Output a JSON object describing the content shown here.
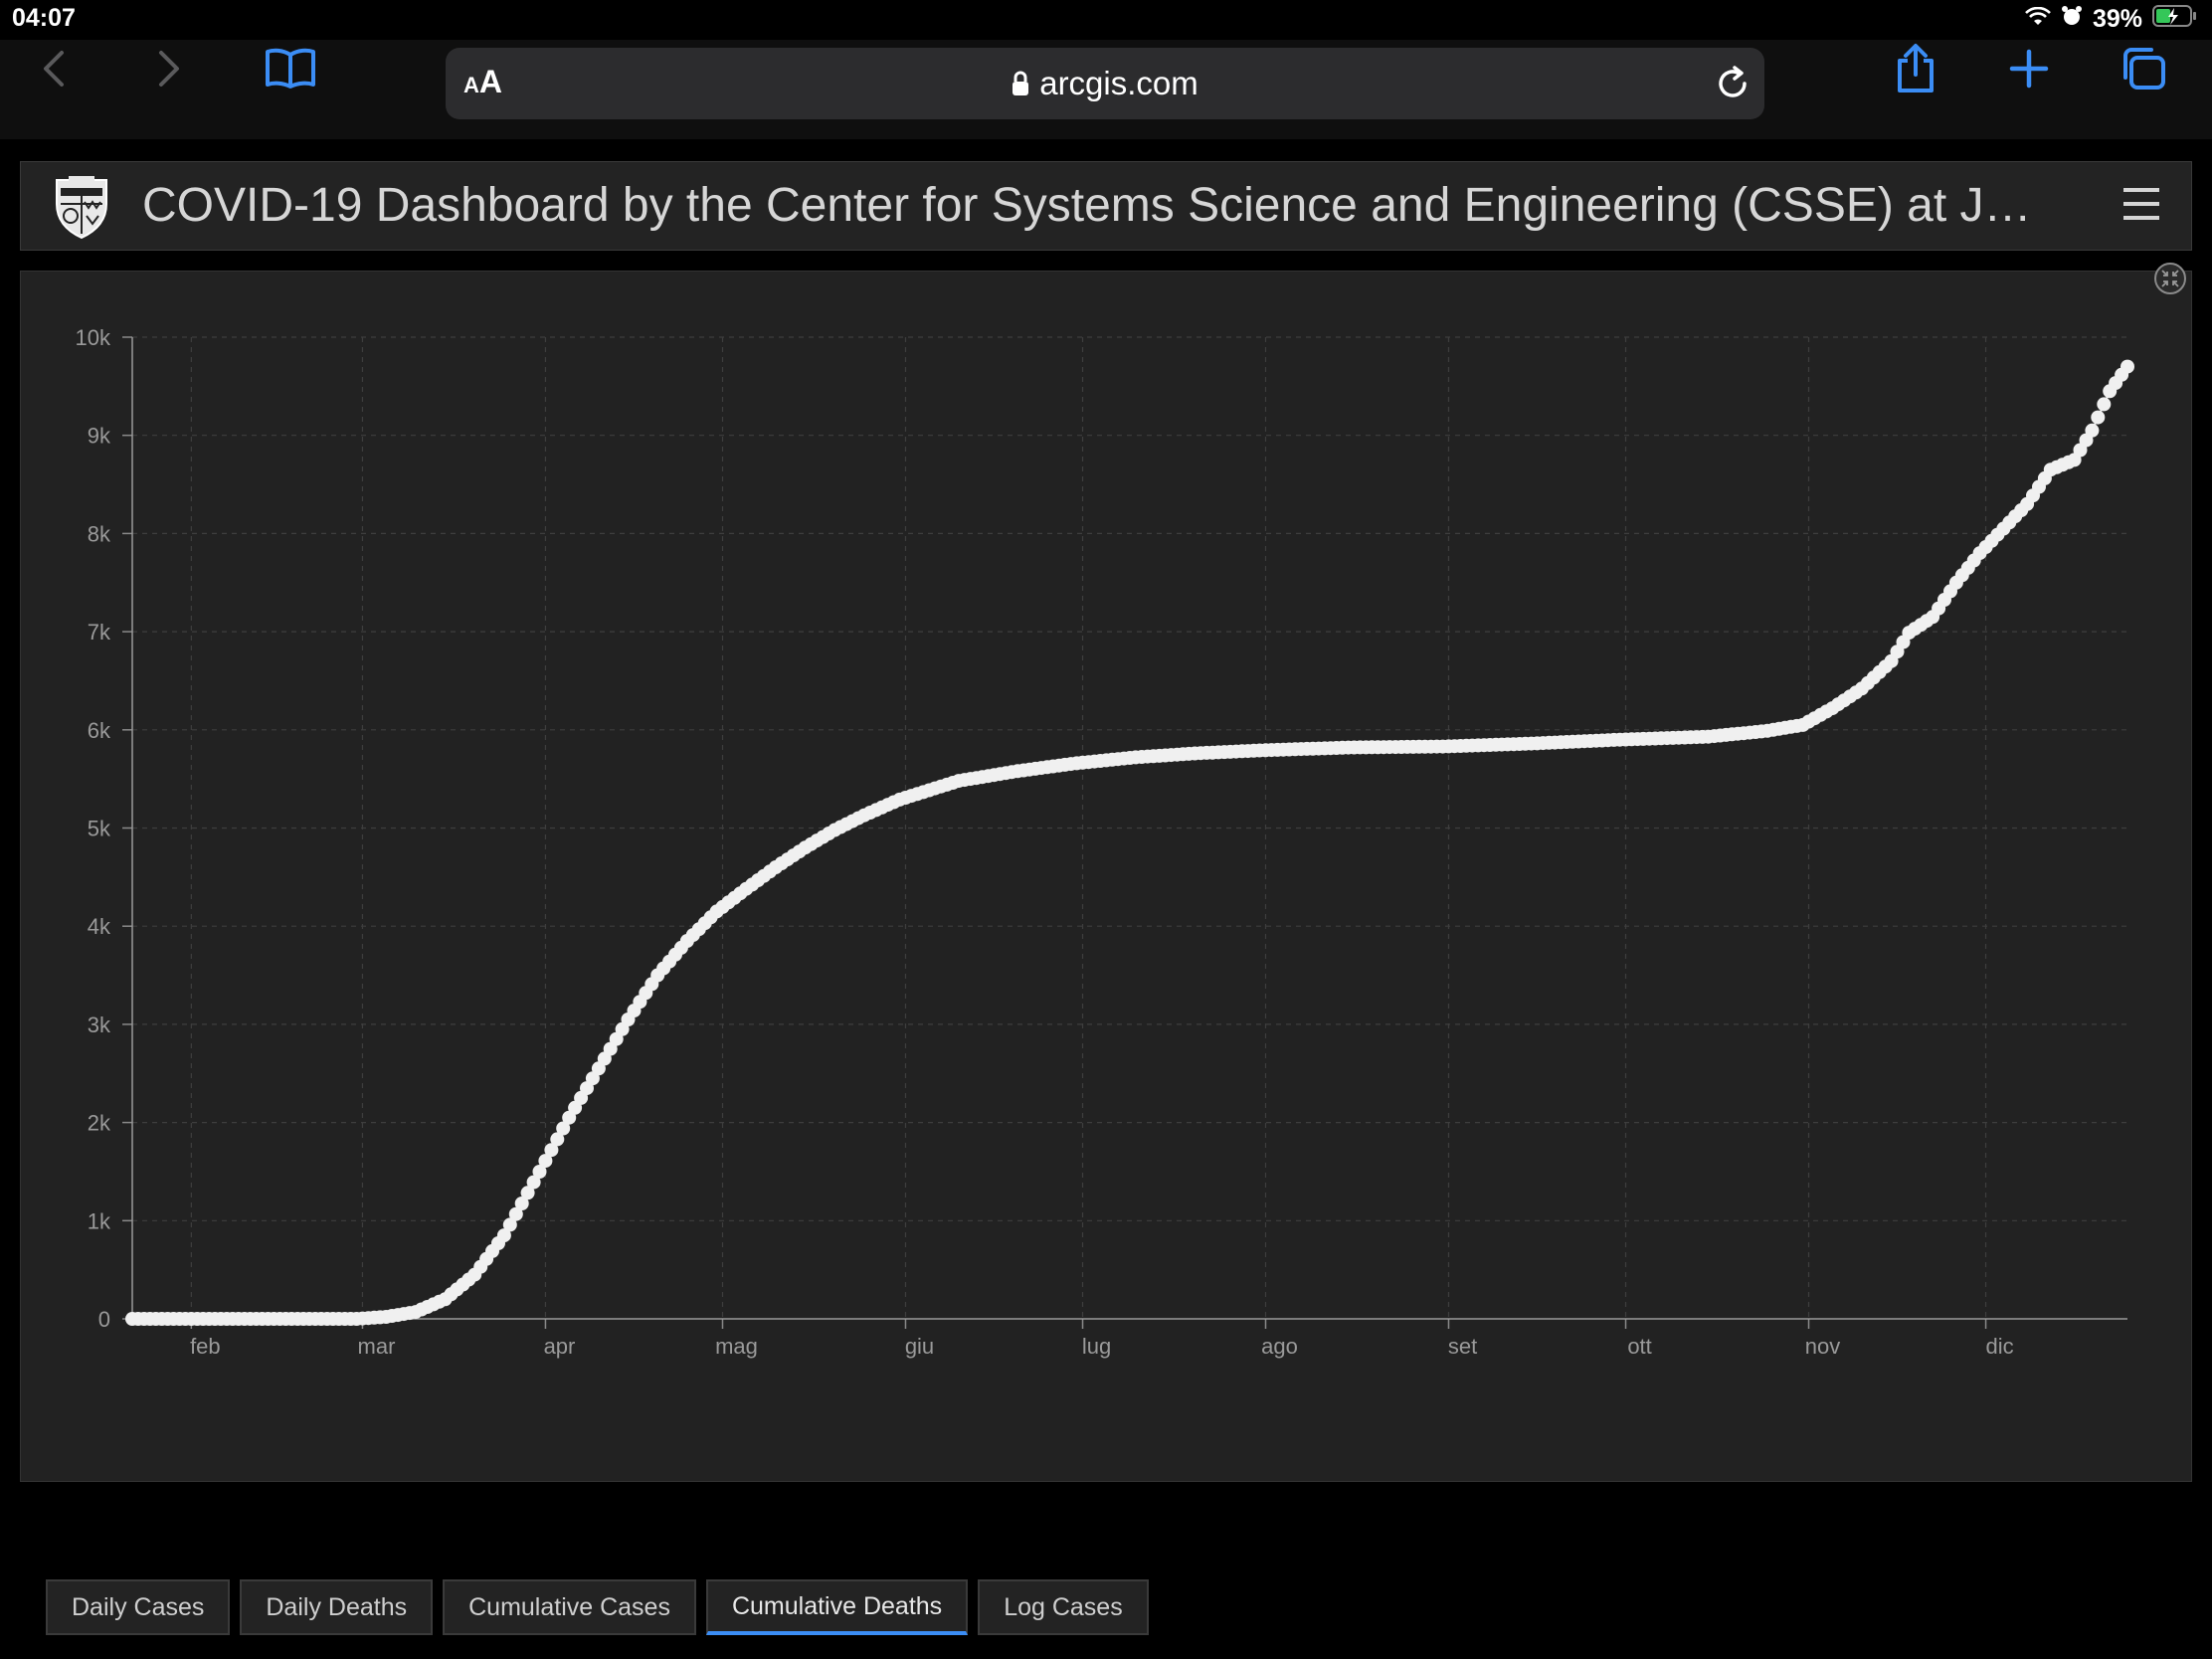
{
  "status": {
    "time": "04:07",
    "battery": "39%"
  },
  "browser": {
    "host": "arcgis.com",
    "aa_small": "A",
    "aa_big": "A"
  },
  "header": {
    "title": "COVID-19 Dashboard by the Center for Systems Science and Engineering (CSSE) at J…"
  },
  "tabs": [
    {
      "label": "Daily Cases"
    },
    {
      "label": "Daily Deaths"
    },
    {
      "label": "Cumulative Cases"
    },
    {
      "label": "Cumulative Deaths",
      "active": true
    },
    {
      "label": "Log Cases"
    }
  ],
  "colors": {
    "accent": "#3b8df5",
    "series": "#f0f0f0",
    "panel": "#222222"
  },
  "chart_data": {
    "type": "scatter",
    "title": "",
    "xlabel": "",
    "ylabel": "",
    "x_unit": "month",
    "x_tick_labels": [
      "feb",
      "mar",
      "apr",
      "mag",
      "giu",
      "lug",
      "ago",
      "set",
      "ott",
      "nov",
      "dic"
    ],
    "x_tick_dates": [
      "2020-02-01",
      "2020-03-01",
      "2020-04-01",
      "2020-05-01",
      "2020-06-01",
      "2020-07-01",
      "2020-08-01",
      "2020-09-01",
      "2020-10-01",
      "2020-11-01",
      "2020-12-01"
    ],
    "x_range": [
      "2020-01-22",
      "2020-12-25"
    ],
    "y_ticks": [
      0,
      1000,
      2000,
      3000,
      4000,
      5000,
      6000,
      7000,
      8000,
      9000,
      10000
    ],
    "y_tick_labels": [
      "0",
      "1k",
      "2k",
      "3k",
      "4k",
      "5k",
      "6k",
      "7k",
      "8k",
      "9k",
      "10k"
    ],
    "ylim": [
      0,
      10000
    ],
    "grid": true,
    "series": [
      {
        "points": [
          [
            "2020-01-22",
            0
          ],
          [
            "2020-02-29",
            0
          ],
          [
            "2020-03-05",
            20
          ],
          [
            "2020-03-10",
            70
          ],
          [
            "2020-03-15",
            200
          ],
          [
            "2020-03-20",
            450
          ],
          [
            "2020-03-25",
            850
          ],
          [
            "2020-03-31",
            1500
          ],
          [
            "2020-04-05",
            2050
          ],
          [
            "2020-04-10",
            2550
          ],
          [
            "2020-04-15",
            3050
          ],
          [
            "2020-04-20",
            3500
          ],
          [
            "2020-04-25",
            3850
          ],
          [
            "2020-04-30",
            4150
          ],
          [
            "2020-05-05",
            4380
          ],
          [
            "2020-05-10",
            4600
          ],
          [
            "2020-05-15",
            4800
          ],
          [
            "2020-05-20",
            4980
          ],
          [
            "2020-05-25",
            5130
          ],
          [
            "2020-05-31",
            5290
          ],
          [
            "2020-06-10",
            5480
          ],
          [
            "2020-06-20",
            5580
          ],
          [
            "2020-06-30",
            5660
          ],
          [
            "2020-07-10",
            5720
          ],
          [
            "2020-07-20",
            5760
          ],
          [
            "2020-07-31",
            5790
          ],
          [
            "2020-08-15",
            5820
          ],
          [
            "2020-08-31",
            5830
          ],
          [
            "2020-09-15",
            5860
          ],
          [
            "2020-09-30",
            5900
          ],
          [
            "2020-10-15",
            5930
          ],
          [
            "2020-10-25",
            5990
          ],
          [
            "2020-10-31",
            6050
          ],
          [
            "2020-11-05",
            6220
          ],
          [
            "2020-11-10",
            6420
          ],
          [
            "2020-11-15",
            6700
          ],
          [
            "2020-11-18",
            6990
          ],
          [
            "2020-11-22",
            7150
          ],
          [
            "2020-11-26",
            7500
          ],
          [
            "2020-11-30",
            7800
          ],
          [
            "2020-12-04",
            8050
          ],
          [
            "2020-12-08",
            8300
          ],
          [
            "2020-12-12",
            8650
          ],
          [
            "2020-12-16",
            8750
          ],
          [
            "2020-12-19",
            9050
          ],
          [
            "2020-12-22",
            9450
          ],
          [
            "2020-12-25",
            9700
          ]
        ]
      }
    ]
  }
}
